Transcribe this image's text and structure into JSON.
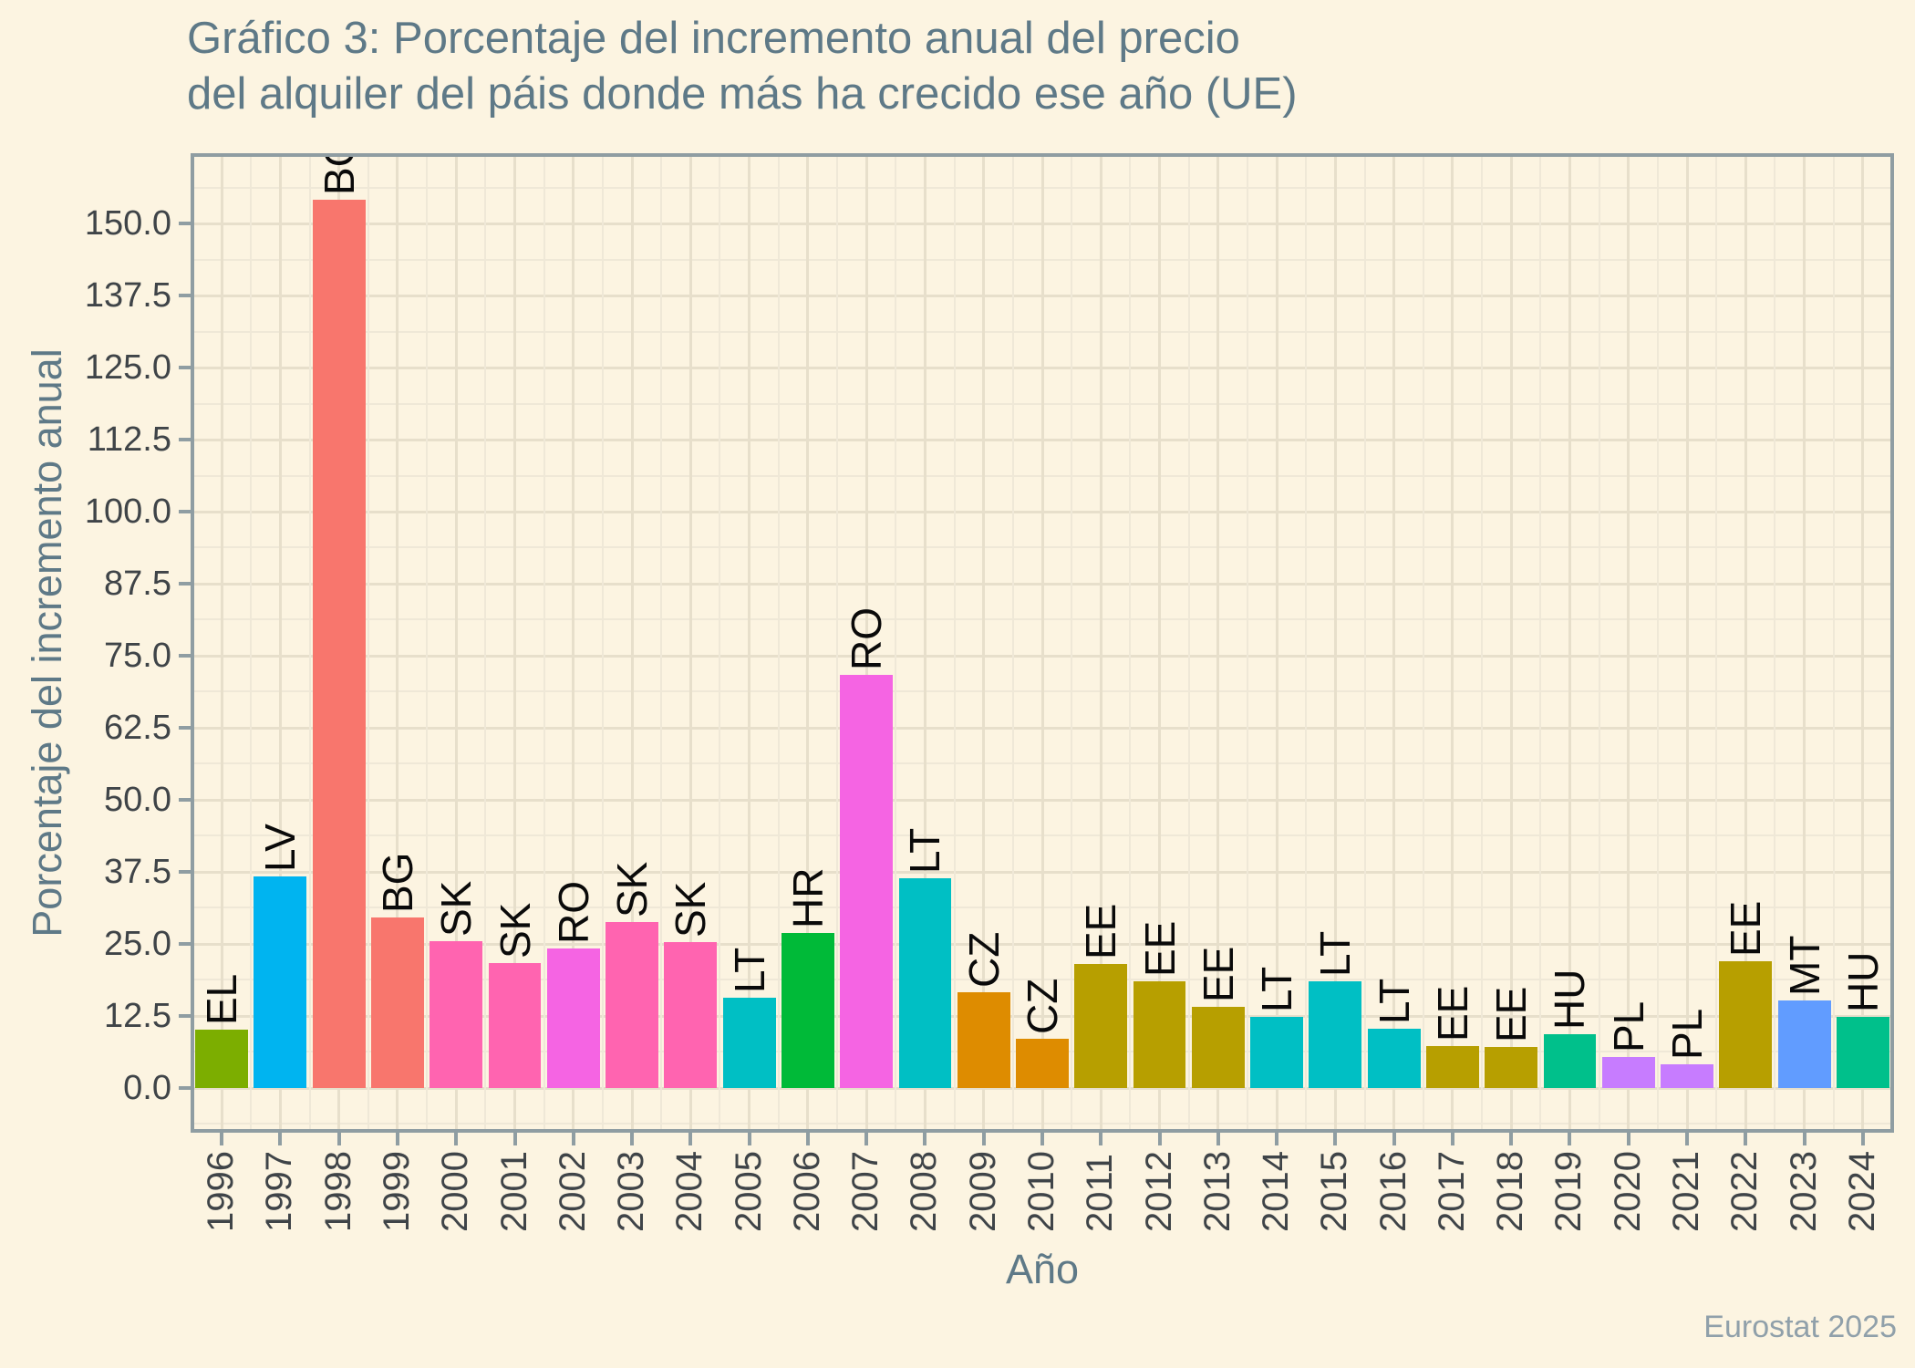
{
  "title": {
    "line1": "Gráfico 3: Porcentaje del incremento anual del precio",
    "line2": "del alquiler del páis donde más ha crecido ese año (UE)"
  },
  "caption": "Eurostat 2025",
  "theme": {
    "background": "#fcf4e1",
    "grid_major": "#e7dfcb",
    "grid_minor": "#efe8d7",
    "axis_line": "#8f9da2",
    "title_color": "#5e7987",
    "axis_title_color": "#5e7987",
    "tick_label_color": "#3f4448",
    "bar_label_color": "#0a0a0a",
    "caption_color": "#90a0aa"
  },
  "chart_data": {
    "type": "bar",
    "title": "Gráfico 3: Porcentaje del incremento anual del precio del alquiler del páis donde más ha crecido ese año (UE)",
    "xlabel": "Año",
    "ylabel": "Porcentaje del incremento anual",
    "legend": "none",
    "grid": "major+minor",
    "y_tick_labels": [
      "0.0",
      "12.5",
      "25.0",
      "37.5",
      "50.0",
      "62.5",
      "75.0",
      "87.5",
      "100.0",
      "112.5",
      "125.0",
      "137.5",
      "150.0"
    ],
    "y_tick_values": [
      0,
      12.5,
      25,
      37.5,
      50,
      62.5,
      75,
      87.5,
      100,
      112.5,
      125,
      137.5,
      150
    ],
    "ylim": [
      -7.5,
      161.9
    ],
    "categories": [
      "1996",
      "1997",
      "1998",
      "1999",
      "2000",
      "2001",
      "2002",
      "2003",
      "2004",
      "2005",
      "2006",
      "2007",
      "2008",
      "2009",
      "2010",
      "2011",
      "2012",
      "2013",
      "2014",
      "2015",
      "2016",
      "2017",
      "2018",
      "2019",
      "2020",
      "2021",
      "2022",
      "2023",
      "2024"
    ],
    "bar_labels": [
      "EL",
      "LV",
      "BG",
      "BG",
      "SK",
      "SK",
      "RO",
      "SK",
      "SK",
      "LT",
      "HR",
      "RO",
      "LT",
      "CZ",
      "CZ",
      "EE",
      "EE",
      "EE",
      "LT",
      "LT",
      "LT",
      "EE",
      "EE",
      "HU",
      "PL",
      "PL",
      "EE",
      "MT",
      "HU"
    ],
    "values": [
      10.1,
      36.6,
      154.2,
      29.5,
      25.4,
      21.6,
      24.1,
      28.8,
      25.3,
      15.6,
      26.9,
      71.7,
      36.4,
      16.5,
      8.5,
      21.5,
      18.4,
      14.1,
      12.3,
      18.4,
      10.3,
      7.3,
      7.0,
      9.3,
      5.4,
      4.0,
      22.0,
      15.2,
      12.3
    ],
    "palette": {
      "BG": "#F8766D",
      "CZ": "#DE8C00",
      "EE": "#B79F00",
      "EL": "#7CAE00",
      "HR": "#00BA38",
      "HU": "#00C08B",
      "LT": "#00BFC4",
      "LV": "#00B4F0",
      "MT": "#619CFF",
      "PL": "#C77CFF",
      "RO": "#F564E3",
      "SK": "#FF64B0"
    }
  }
}
